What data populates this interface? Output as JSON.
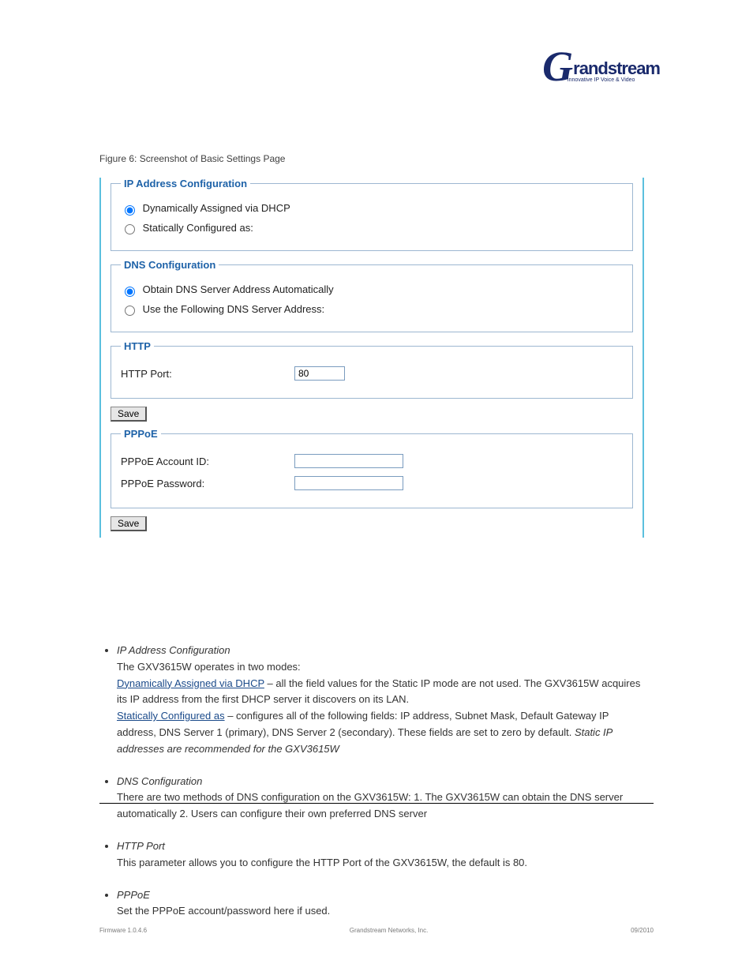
{
  "brand": {
    "g": "G",
    "name": "randstream",
    "tagline": "Innovative IP Voice & Video"
  },
  "figure_caption": "Figure 6: Screenshot of Basic Settings Page",
  "panels": {
    "ip": {
      "legend": "IP Address Configuration",
      "opt1": "Dynamically Assigned via DHCP",
      "opt2": "Statically Configured as:"
    },
    "dns": {
      "legend": "DNS Configuration",
      "opt1": "Obtain DNS Server Address Automatically",
      "opt2": "Use the Following DNS Server Address:"
    },
    "http": {
      "legend": "HTTP",
      "port_label": "HTTP Port:",
      "port_value": "80"
    },
    "pppoe": {
      "legend": "PPPoE",
      "account_label": "PPPoE Account ID:",
      "password_label": "PPPoE Password:"
    }
  },
  "save_label": "Save",
  "bullets": {
    "b1_pre": "IP Address Configuration",
    "b1_post": "The GXV3615W operates in two modes:",
    "b1a_title": "Dynamically Assigned via DHCP",
    "b1a_body": " – all the field values for the Static IP mode are not used. The GXV3615W acquires its IP address from the first DHCP server it discovers on its LAN.",
    "b1b_title": "Statically Configured as",
    "b1b_body": " – configures all of the following fields: IP address, Subnet Mask, Default Gateway IP address, DNS Server 1 (primary), DNS Server 2 (secondary). These fields are set to zero by default. ",
    "b1b_static": "Static IP addresses are recommended for the GXV3615W",
    "b2_pre": "DNS Configuration",
    "b2_body": "There are two methods of DNS configuration on the GXV3615W: 1. The GXV3615W can obtain the DNS server automatically 2. Users can configure their own preferred DNS server",
    "b3_pre": "HTTP Port",
    "b3_body": "This parameter allows you to configure the HTTP Port of the GXV3615W, the default is 80.",
    "b4_pre": "PPPoE",
    "b4_body": "Set the PPPoE account/password here if used."
  },
  "footer": {
    "line1": "Firmware 1.0.4.6",
    "line2": "Grandstream Networks, Inc.",
    "line3": "09/2010"
  },
  "colors": {
    "panel_border": "#5bc0de",
    "fieldset_border": "#9db7d1",
    "legend": "#1e62a8",
    "brand": "#1a2a6c"
  }
}
